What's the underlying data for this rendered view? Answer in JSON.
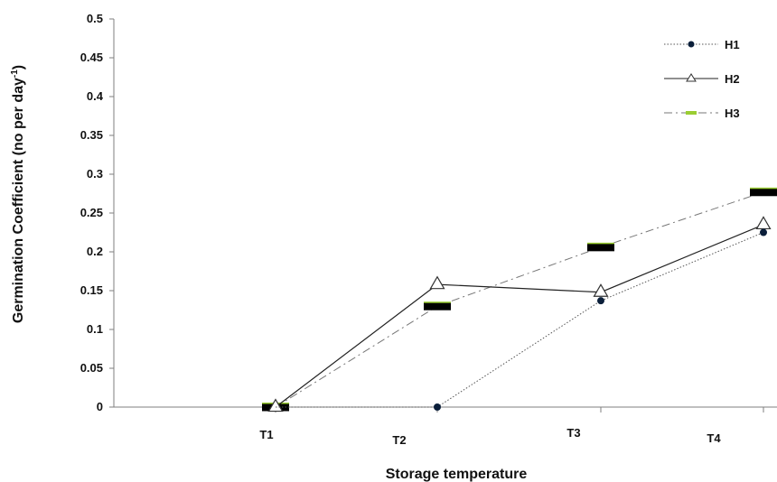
{
  "chart_data": {
    "type": "line",
    "title": "",
    "xlabel": "Storage temperature",
    "ylabel": "Germination Coefficient (no per day",
    "ylabel_superscript": "-1",
    "ylabel_close": ")",
    "categories": [
      "T1",
      "T2",
      "T3",
      "T4"
    ],
    "ylim": [
      0,
      0.5
    ],
    "yticks": [
      "0",
      "0.05",
      "0.1",
      "0.15",
      "0.2",
      "0.25",
      "0.3",
      "0.35",
      "0.4",
      "0.45",
      "0.5"
    ],
    "grid": false,
    "legend_position": "top-right",
    "series": [
      {
        "name": "H1",
        "marker": "circle",
        "line": "dotted",
        "color": "#0b1f3a",
        "values": [
          0.0,
          0.0,
          0.137,
          0.225
        ]
      },
      {
        "name": "H2",
        "marker": "triangle",
        "line": "solid",
        "color": "#222222",
        "values": [
          0.0,
          0.158,
          0.148,
          0.235
        ]
      },
      {
        "name": "H3",
        "marker": "dash",
        "line": "dashdot",
        "color": "#888888",
        "values": [
          0.0,
          0.13,
          0.206,
          0.277
        ]
      }
    ]
  }
}
